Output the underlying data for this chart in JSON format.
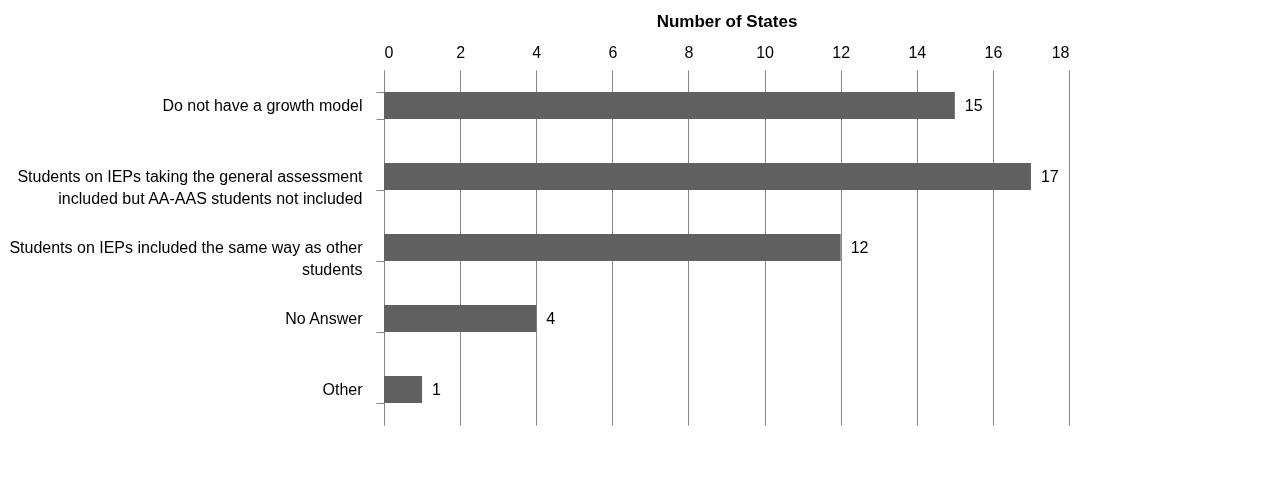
{
  "chart_data": {
    "type": "bar",
    "orientation": "horizontal",
    "xlabel": "Number of States",
    "categories": [
      "Do not have a growth model",
      "Students on IEPs taking the general assessment included but AA-AAS students not included",
      "Students on IEPs included the same way as other students",
      "No Answer",
      "Other"
    ],
    "values": [
      15,
      17,
      12,
      4,
      1
    ],
    "color": "#606060",
    "xlim": [
      0,
      18
    ],
    "xticks": [
      0,
      2,
      4,
      6,
      8,
      10,
      12,
      14,
      16,
      18
    ],
    "grid": "x",
    "data_labels": true
  }
}
